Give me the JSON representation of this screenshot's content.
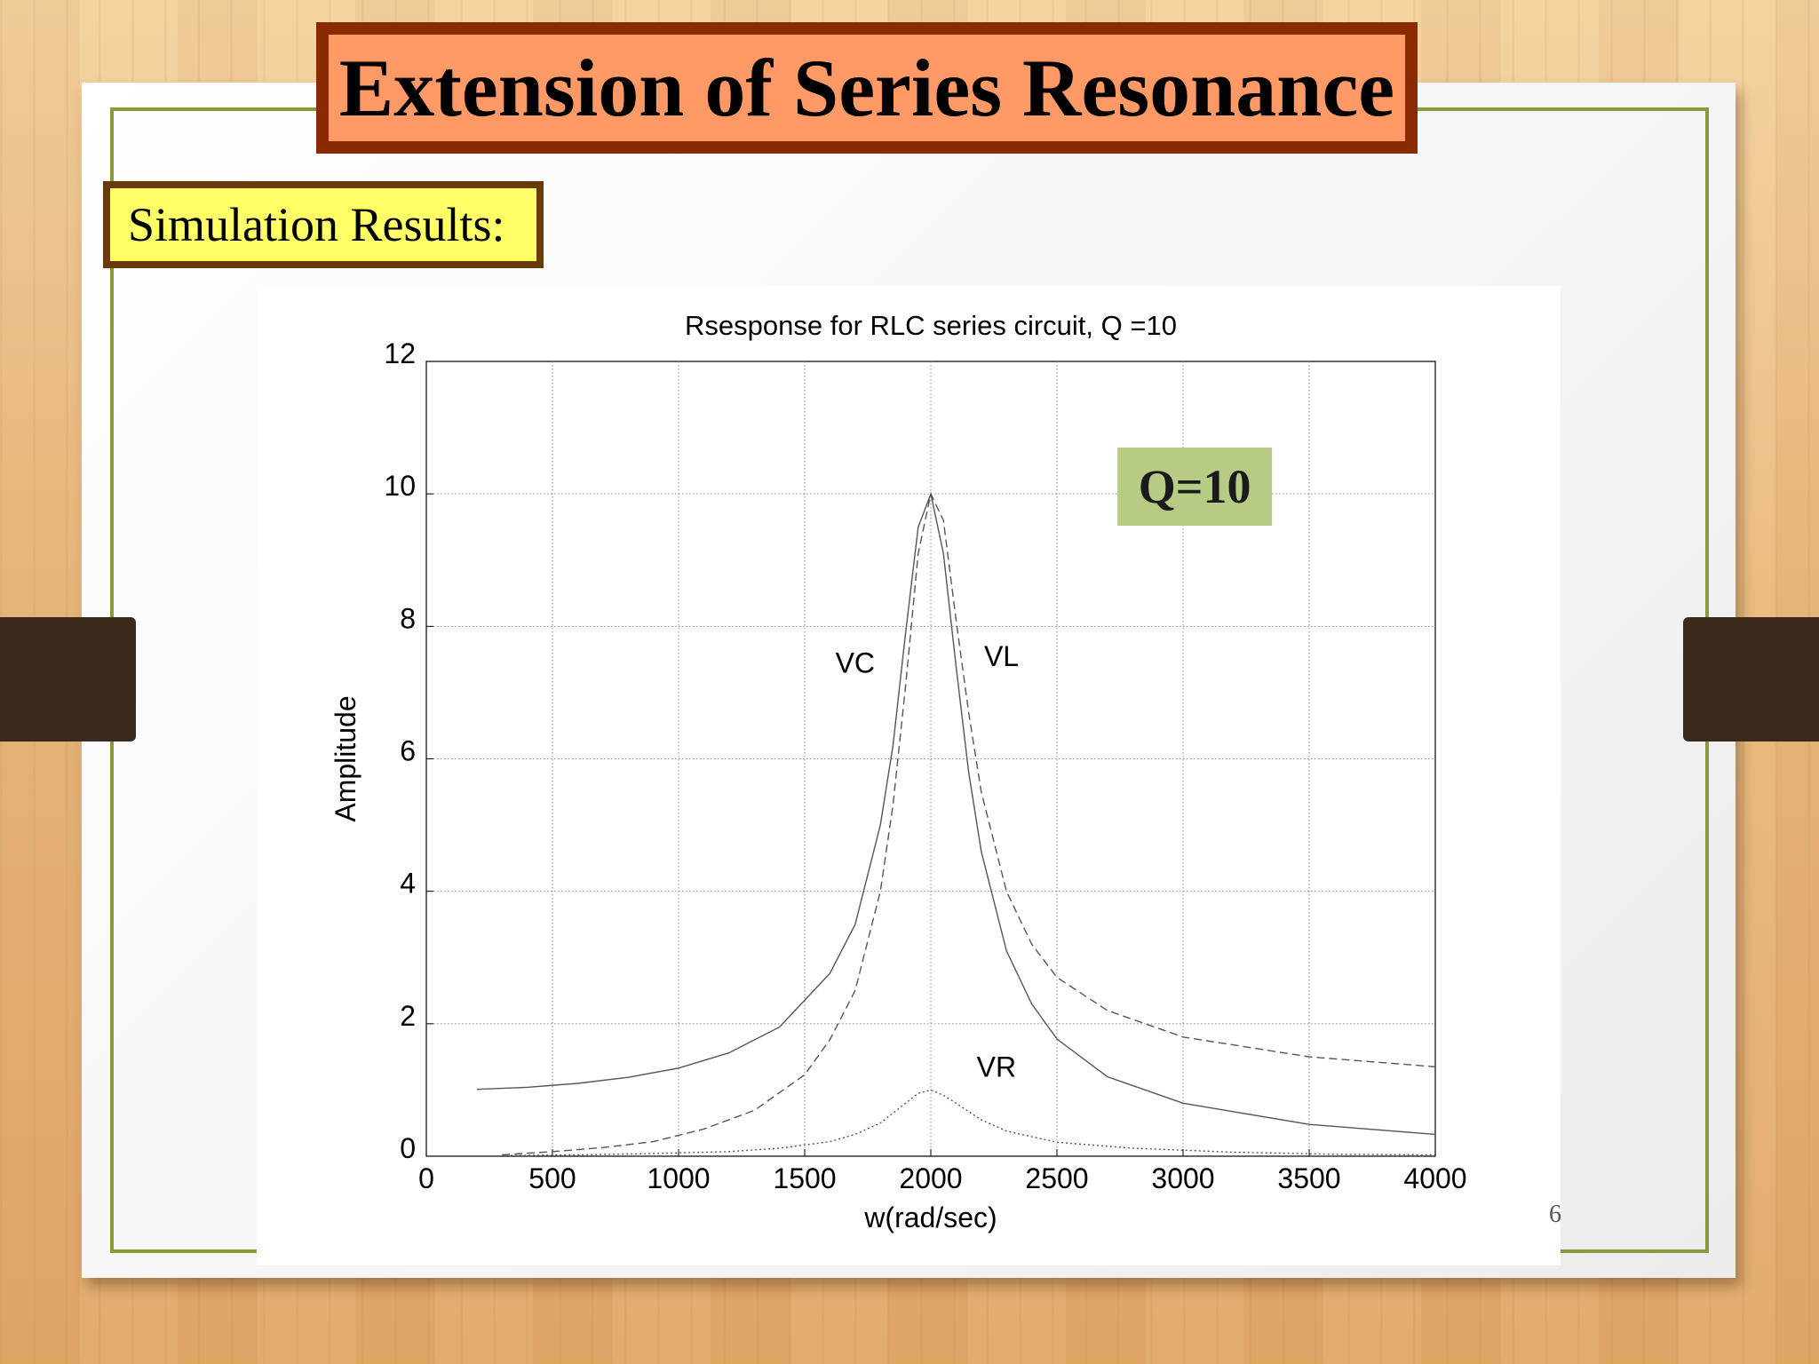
{
  "slide": {
    "title": "Extension of Series Resonance",
    "subtitle": "Simulation Results:",
    "page_number": "6"
  },
  "colors": {
    "title_fill": "#ff9a66",
    "title_border": "#8a2a00",
    "subtitle_fill": "#ffff66",
    "subtitle_border": "#6b3a0a",
    "q_badge_fill": "#b6cc84",
    "frame": "#8a9a3a"
  },
  "chart_data": {
    "type": "line",
    "title": "Rsesponse for RLC series circuit, Q =10",
    "xlabel": "w(rad/sec)",
    "ylabel": "Amplitude",
    "xlim": [
      0,
      4000
    ],
    "ylim": [
      0,
      12
    ],
    "xticks": [
      "0",
      "500",
      "1000",
      "1500",
      "2000",
      "2500",
      "3000",
      "3500",
      "4000"
    ],
    "yticks": [
      "0",
      "2",
      "4",
      "6",
      "8",
      "10",
      "12"
    ],
    "grid": true,
    "badge": "Q=10",
    "annotations": [
      {
        "text": "VC",
        "x": 1700,
        "y": 7.3
      },
      {
        "text": "VL",
        "x": 2280,
        "y": 7.4
      },
      {
        "text": "VR",
        "x": 2260,
        "y": 1.2
      }
    ],
    "series": [
      {
        "style": "solid",
        "x": [
          200,
          400,
          600,
          800,
          1000,
          1200,
          1400,
          1600,
          1700,
          1800,
          1850,
          1900,
          1950,
          2000,
          2050,
          2100,
          2150,
          2200,
          2300,
          2400,
          2500,
          2700,
          3000,
          3500,
          4000
        ],
        "y": [
          1.01,
          1.04,
          1.1,
          1.19,
          1.33,
          1.56,
          1.95,
          2.76,
          3.5,
          5.0,
          6.2,
          7.9,
          9.5,
          10.0,
          9.1,
          7.4,
          5.8,
          4.6,
          3.1,
          2.3,
          1.77,
          1.2,
          0.8,
          0.48,
          0.33
        ]
      },
      {
        "style": "dashed",
        "x": [
          300,
          500,
          700,
          900,
          1100,
          1300,
          1500,
          1600,
          1700,
          1800,
          1850,
          1900,
          1950,
          2000,
          2050,
          2100,
          2150,
          2200,
          2300,
          2400,
          2500,
          2700,
          3000,
          3500,
          4000
        ],
        "y": [
          0.02,
          0.07,
          0.13,
          0.22,
          0.41,
          0.69,
          1.23,
          1.76,
          2.5,
          4.0,
          5.3,
          7.1,
          9.1,
          10.0,
          9.6,
          8.1,
          6.7,
          5.5,
          4.0,
          3.2,
          2.7,
          2.2,
          1.8,
          1.5,
          1.35
        ]
      },
      {
        "style": "dotted",
        "x": [
          300,
          600,
          900,
          1200,
          1400,
          1600,
          1700,
          1800,
          1900,
          1950,
          2000,
          2050,
          2100,
          2200,
          2300,
          2500,
          2800,
          3200,
          3600,
          4000
        ],
        "y": [
          0.01,
          0.02,
          0.04,
          0.07,
          0.12,
          0.22,
          0.33,
          0.5,
          0.8,
          0.95,
          1.0,
          0.92,
          0.8,
          0.55,
          0.38,
          0.21,
          0.12,
          0.06,
          0.03,
          0.02
        ]
      }
    ]
  }
}
